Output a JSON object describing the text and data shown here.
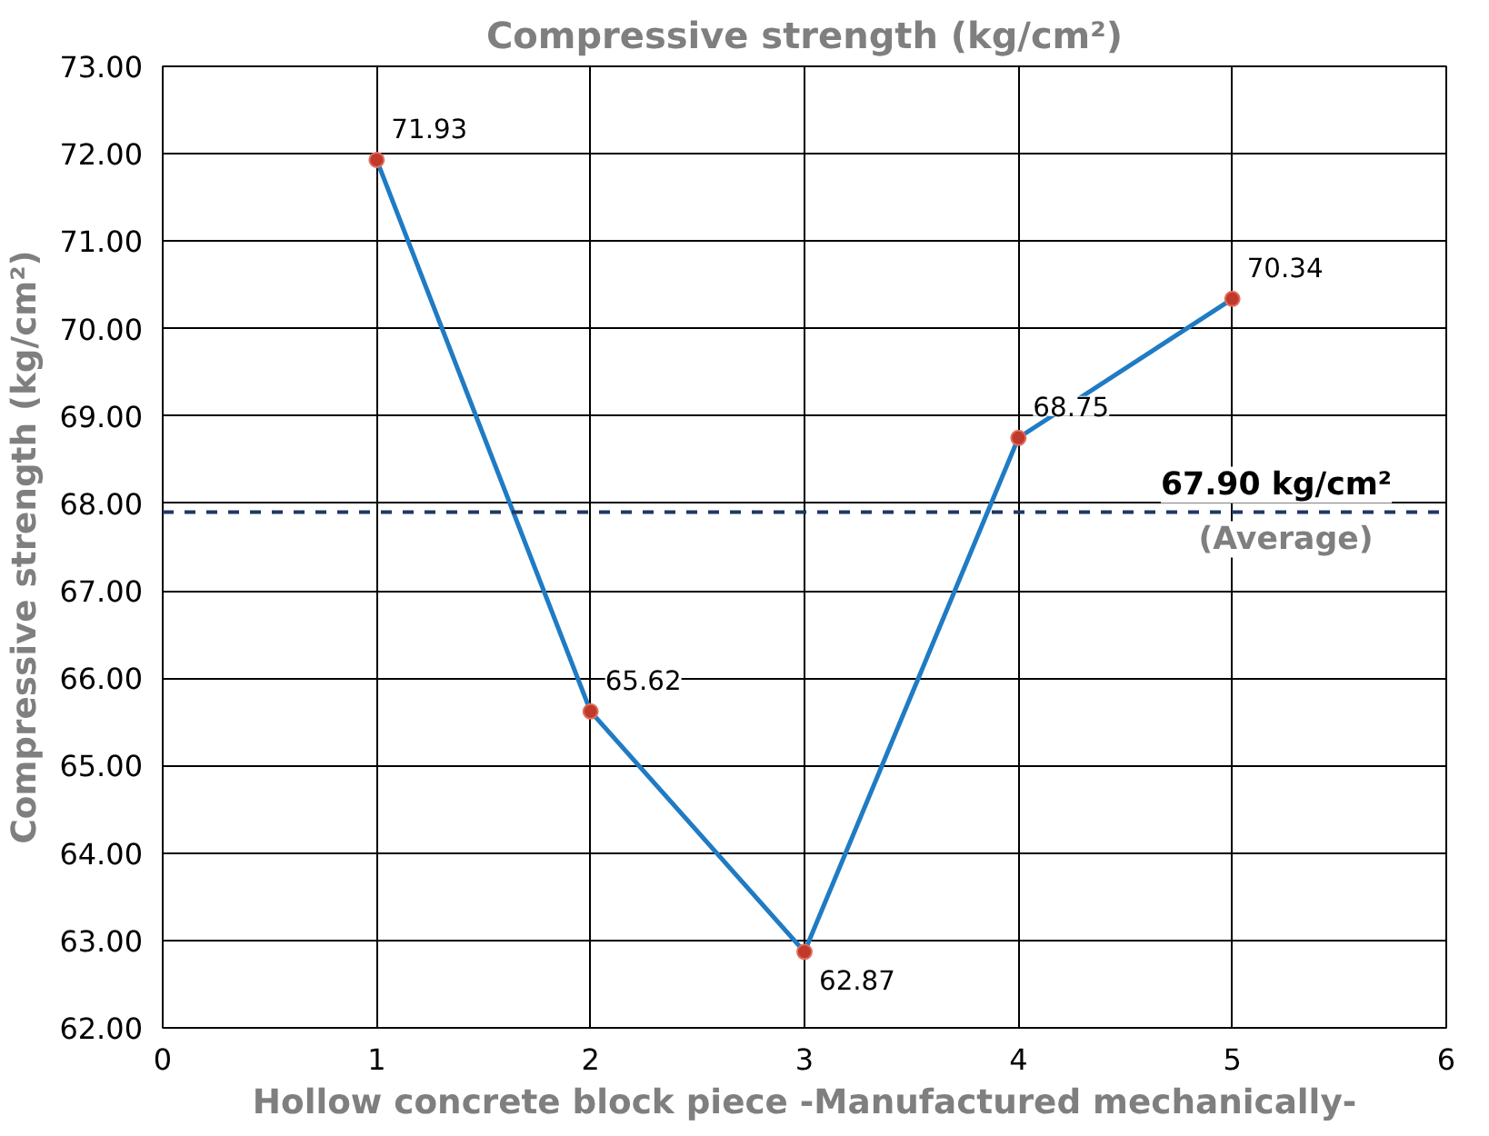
{
  "chart_data": {
    "type": "line",
    "title": "Compressive strength (kg/cm²)",
    "xlabel": "Hollow concrete block piece -Manufactured mechanically-",
    "ylabel": "Compressive strength (kg/cm²)",
    "x": [
      1,
      2,
      3,
      4,
      5
    ],
    "series": [
      {
        "color": "#1f7bc4",
        "colors": [
          "#c0392b",
          "#c0392b",
          "#c0392b",
          "#c0392b",
          "#c0392b"
        ],
        "values": [
          71.93,
          65.62,
          62.87,
          68.75,
          70.34
        ]
      }
    ],
    "marker": "circle",
    "line_style": "solid",
    "data_labels": true,
    "xlim": [
      0,
      6
    ],
    "xticks": [
      0,
      1,
      2,
      3,
      4,
      5,
      6
    ],
    "ylim": [
      62,
      73
    ],
    "yticks": [
      {
        "value": 62,
        "label": "62.00"
      },
      {
        "value": 63,
        "label": "63.00"
      },
      {
        "value": 64,
        "label": "64.00"
      },
      {
        "value": 65,
        "label": "65.00"
      },
      {
        "value": 66,
        "label": "66.00"
      },
      {
        "value": 67,
        "label": "67.00"
      },
      {
        "value": 68,
        "label": "68.00"
      },
      {
        "value": 69,
        "label": "69.00"
      },
      {
        "value": 70,
        "label": "70.00"
      },
      {
        "value": 71,
        "label": "71.00"
      },
      {
        "value": 72,
        "label": "72.00"
      },
      {
        "value": 73,
        "label": "73.00"
      }
    ],
    "ref_lines": [
      {
        "axis": "y",
        "value": 67.9,
        "label": "67.90 kg/cm²",
        "color": "#1f3864",
        "line_style": "dashed"
      }
    ],
    "annotations": [
      {
        "text": "(Average)",
        "x": 5.25,
        "y": 67.9
      }
    ],
    "grid": true
  }
}
